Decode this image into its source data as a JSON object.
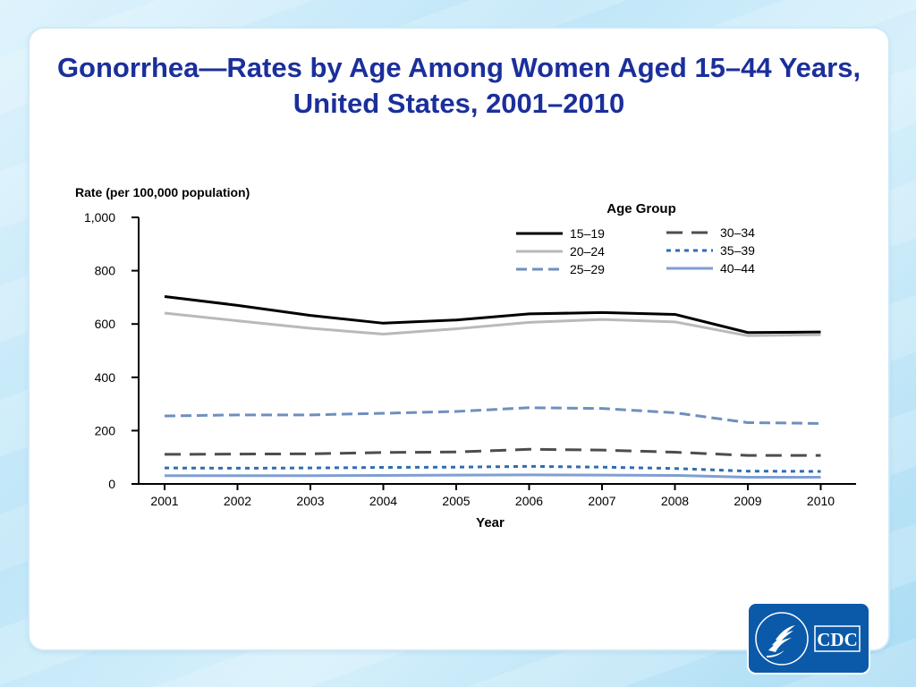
{
  "slide": {
    "title_line1": "Gonorrhea—Rates by Age Among Women Aged 15–44 Years,",
    "title_line2": "United States, 2001–2010"
  },
  "logo": {
    "text": "CDC",
    "seal_text": "DEPARTMENT OF HEALTH & HUMAN SERVICES USA",
    "icon": "hhs-eagle-icon"
  },
  "colors": {
    "title": "#1b2f9b",
    "s15_19": "#000000",
    "s20_24": "#b9b9b9",
    "s25_29": "#6f8fbf",
    "s30_34": "#4d4d4d",
    "s35_39": "#2e6db0",
    "s40_44": "#7f9ed3"
  },
  "chart_data": {
    "type": "line",
    "title": "",
    "ylabel": "Rate (per 100,000 population)",
    "xlabel": "Year",
    "legend_title": "Age Group",
    "legend_placement": "top-right",
    "grid": false,
    "ylim": [
      0,
      1000
    ],
    "yticks": [
      0,
      200,
      400,
      600,
      800,
      1000
    ],
    "ytick_labels": [
      "0",
      "200",
      "400",
      "600",
      "800",
      "1,000"
    ],
    "x": [
      "2001",
      "2002",
      "2003",
      "2004",
      "2005",
      "2006",
      "2007",
      "2008",
      "2009",
      "2010"
    ],
    "series": [
      {
        "name": "15–19",
        "style": "solid",
        "color": "#000000",
        "values": [
          703,
          670,
          632,
          603,
          615,
          638,
          643,
          636,
          568,
          570
        ]
      },
      {
        "name": "20–24",
        "style": "solid",
        "color": "#b9b9b9",
        "values": [
          641,
          612,
          584,
          562,
          582,
          606,
          617,
          608,
          556,
          560
        ]
      },
      {
        "name": "25–29",
        "style": "dashed",
        "color": "#6f8fbf",
        "values": [
          255,
          259,
          259,
          265,
          272,
          286,
          283,
          267,
          230,
          227
        ]
      },
      {
        "name": "30–34",
        "style": "longdash",
        "color": "#4d4d4d",
        "values": [
          111,
          112,
          113,
          118,
          120,
          130,
          127,
          119,
          107,
          107
        ]
      },
      {
        "name": "35–39",
        "style": "dotted",
        "color": "#2e6db0",
        "values": [
          60,
          59,
          60,
          62,
          63,
          66,
          63,
          58,
          48,
          47
        ]
      },
      {
        "name": "40–44",
        "style": "solid",
        "color": "#7f9ed3",
        "values": [
          31,
          31,
          31,
          32,
          33,
          34,
          33,
          32,
          25,
          25
        ]
      }
    ]
  }
}
